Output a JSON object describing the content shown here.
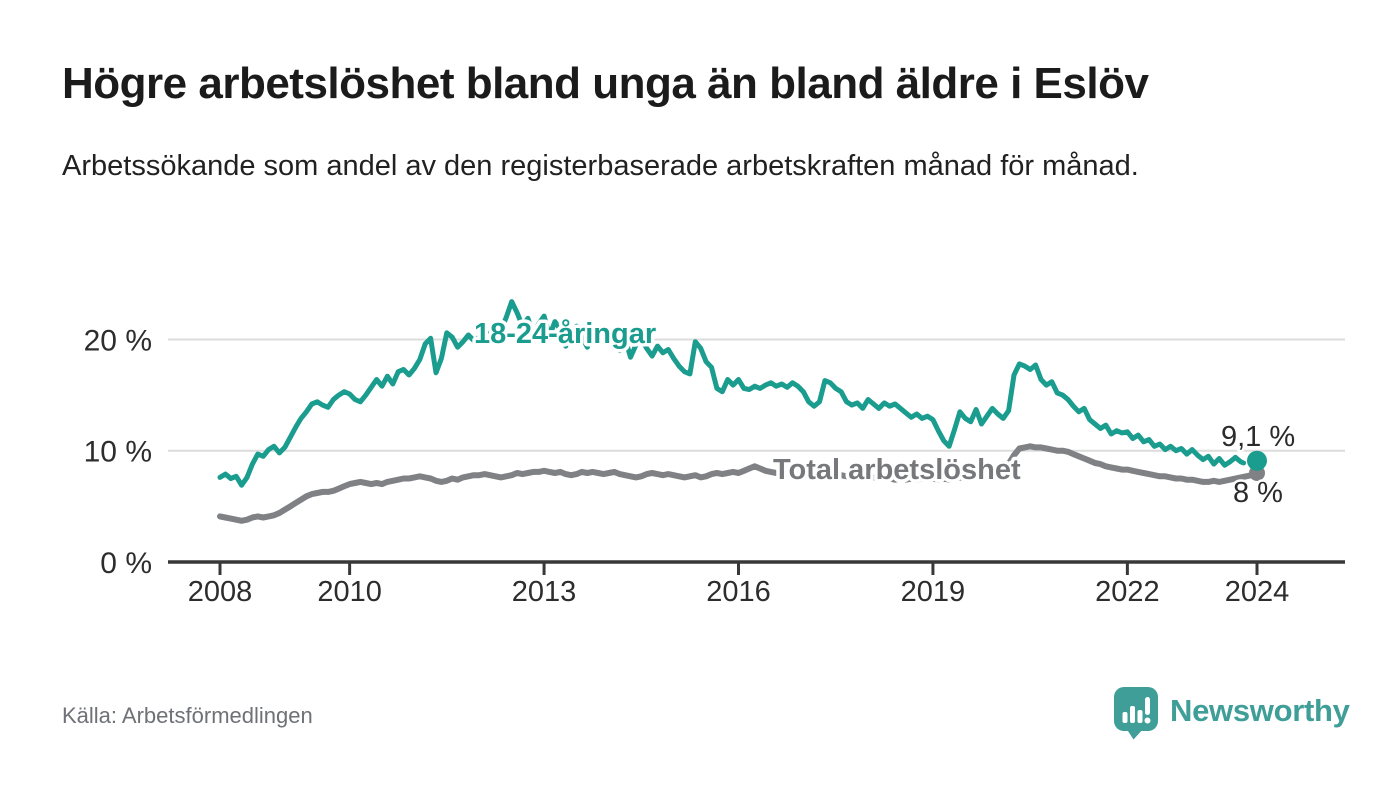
{
  "header": {
    "title": "Högre arbetslöshet bland unga än bland äldre i Eslöv",
    "subtitle": "Arbetssökande som andel av den registerbaserade arbetskraften månad för månad."
  },
  "footer": {
    "source": "Källa: Arbetsförmedlingen",
    "brand": "Newsworthy"
  },
  "colors": {
    "accent_teal": "#1a9c8e",
    "total_gray": "#7f8184",
    "brand_teal": "#3f9e97",
    "grid": "#dcdcdc",
    "axis": "#383838",
    "end_dot_young": "#1a9c8e",
    "end_dot_total": "#7f8184"
  },
  "chart_data": {
    "type": "line",
    "title": "Arbetssökande som andel av den registerbaserade arbetskraften månad för månad",
    "unit": "%",
    "frequency": "monthly",
    "x_start": "2008-01",
    "x_end": "2024-01",
    "ylim": [
      0,
      24
    ],
    "grid": "horizontal",
    "legend_position": "inline-labels",
    "yticks": [
      {
        "value": 0,
        "label": "0 %"
      },
      {
        "value": 10,
        "label": "10 %"
      },
      {
        "value": 20,
        "label": "20 %"
      }
    ],
    "xticks": [
      {
        "year": 2008,
        "label": "2008"
      },
      {
        "year": 2010,
        "label": "2010"
      },
      {
        "year": 2013,
        "label": "2013"
      },
      {
        "year": 2016,
        "label": "2016"
      },
      {
        "year": 2019,
        "label": "2019"
      },
      {
        "year": 2022,
        "label": "2022"
      },
      {
        "year": 2024,
        "label": "2024"
      }
    ],
    "series": [
      {
        "name": "18-24-åringar",
        "color": "#1a9c8e",
        "line_width": 5,
        "end_label": "9,1 %",
        "end_value": 9.1,
        "dashed_tail_points": 4,
        "values": [
          7.6,
          7.9,
          7.5,
          7.7,
          6.9,
          7.6,
          8.8,
          9.7,
          9.5,
          10.1,
          10.4,
          9.8,
          10.3,
          11.2,
          12.1,
          12.9,
          13.5,
          14.2,
          14.4,
          14.1,
          13.9,
          14.6,
          15.0,
          15.3,
          15.1,
          14.6,
          14.4,
          15.0,
          15.7,
          16.4,
          15.8,
          16.7,
          16.0,
          17.1,
          17.3,
          16.8,
          17.4,
          18.2,
          19.6,
          20.1,
          17.0,
          18.3,
          20.6,
          20.2,
          19.3,
          19.8,
          20.4,
          19.9,
          20.2,
          21.0,
          20.5,
          19.6,
          20.8,
          22.0,
          23.4,
          22.4,
          21.2,
          21.9,
          20.4,
          21.4,
          22.1,
          20.3,
          21.6,
          20.9,
          19.4,
          20.7,
          21.2,
          20.2,
          19.3,
          20.5,
          19.8,
          20.3,
          19.6,
          20.4,
          19.0,
          20.1,
          18.4,
          19.5,
          20.0,
          19.2,
          18.5,
          19.4,
          18.8,
          19.1,
          18.3,
          17.6,
          17.1,
          16.9,
          19.8,
          19.2,
          18.0,
          17.5,
          15.6,
          15.3,
          16.4,
          15.9,
          16.4,
          15.6,
          15.5,
          15.8,
          15.6,
          15.9,
          16.1,
          15.8,
          16.0,
          15.7,
          16.1,
          15.8,
          15.3,
          14.4,
          14.0,
          14.4,
          16.3,
          16.1,
          15.6,
          15.3,
          14.4,
          14.1,
          14.3,
          13.8,
          14.6,
          14.2,
          13.8,
          14.3,
          14.0,
          14.2,
          13.8,
          13.4,
          13.0,
          13.3,
          12.9,
          13.1,
          12.8,
          11.8,
          10.9,
          10.4,
          11.9,
          13.5,
          12.9,
          12.6,
          13.7,
          12.4,
          13.1,
          13.8,
          13.3,
          12.9,
          13.6,
          16.8,
          17.8,
          17.6,
          17.3,
          17.7,
          16.4,
          15.9,
          16.2,
          15.2,
          15.0,
          14.6,
          14.0,
          13.5,
          13.8,
          12.8,
          12.4,
          12.0,
          12.3,
          11.5,
          11.8,
          11.6,
          11.7,
          11.1,
          11.4,
          10.8,
          11.0,
          10.4,
          10.6,
          10.1,
          10.4,
          10.0,
          10.2,
          9.7,
          10.1,
          9.6,
          9.2,
          9.5,
          8.8,
          9.3,
          8.7,
          9.0,
          9.4,
          9.0,
          8.8,
          8.9,
          9.1
        ]
      },
      {
        "name": "Total arbetslöshet",
        "color": "#7f8184",
        "line_width": 6,
        "end_label": "8 %",
        "end_value": 8.0,
        "dashed_tail_points": 0,
        "values": [
          4.1,
          4.0,
          3.9,
          3.8,
          3.7,
          3.8,
          4.0,
          4.1,
          4.0,
          4.1,
          4.2,
          4.4,
          4.7,
          5.0,
          5.3,
          5.6,
          5.9,
          6.1,
          6.2,
          6.3,
          6.3,
          6.4,
          6.6,
          6.8,
          7.0,
          7.1,
          7.2,
          7.1,
          7.0,
          7.1,
          7.0,
          7.2,
          7.3,
          7.4,
          7.5,
          7.5,
          7.6,
          7.7,
          7.6,
          7.5,
          7.3,
          7.2,
          7.3,
          7.5,
          7.4,
          7.6,
          7.7,
          7.8,
          7.8,
          7.9,
          7.8,
          7.7,
          7.6,
          7.7,
          7.8,
          8.0,
          7.9,
          8.0,
          8.1,
          8.1,
          8.2,
          8.1,
          8.0,
          8.1,
          7.9,
          7.8,
          7.9,
          8.1,
          8.0,
          8.1,
          8.0,
          7.9,
          8.0,
          8.1,
          7.9,
          7.8,
          7.7,
          7.6,
          7.7,
          7.9,
          8.0,
          7.9,
          7.8,
          7.9,
          7.8,
          7.7,
          7.6,
          7.7,
          7.8,
          7.6,
          7.7,
          7.9,
          8.0,
          7.9,
          8.0,
          8.1,
          8.0,
          8.2,
          8.4,
          8.6,
          8.4,
          8.2,
          8.1,
          8.0,
          8.0,
          7.9,
          8.0,
          8.0,
          7.9,
          7.8,
          7.9,
          7.8,
          7.7,
          7.8,
          7.7,
          7.8,
          7.7,
          7.6,
          7.7,
          7.6,
          7.7,
          7.6,
          7.5,
          7.6,
          7.5,
          7.4,
          7.5,
          7.4,
          7.5,
          7.4,
          7.5,
          7.6,
          7.5,
          7.4,
          7.5,
          7.4,
          7.5,
          7.6,
          7.5,
          7.6,
          7.7,
          7.6,
          7.7,
          7.8,
          8.0,
          8.2,
          8.8,
          9.6,
          10.2,
          10.3,
          10.4,
          10.3,
          10.3,
          10.2,
          10.1,
          10.0,
          10.0,
          9.9,
          9.7,
          9.5,
          9.3,
          9.1,
          8.9,
          8.8,
          8.6,
          8.5,
          8.4,
          8.3,
          8.3,
          8.2,
          8.1,
          8.0,
          7.9,
          7.8,
          7.7,
          7.7,
          7.6,
          7.5,
          7.5,
          7.4,
          7.4,
          7.3,
          7.2,
          7.2,
          7.3,
          7.2,
          7.3,
          7.4,
          7.5,
          7.6,
          7.7,
          7.8,
          8.0
        ]
      }
    ]
  }
}
